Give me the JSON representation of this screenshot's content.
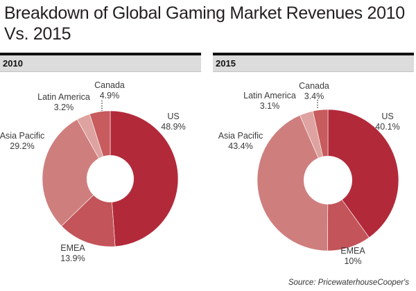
{
  "title": "Breakdown of Global Gaming Market Revenues 2010 Vs. 2015",
  "source": "Source: PricewaterhouseCooper's",
  "colors": {
    "US": "#b22a3a",
    "EMEA": "#c3545a",
    "Asia Pacific": "#cf7e7e",
    "Latin America": "#dea3a0",
    "Canada": "#c75b5d"
  },
  "chart_data": [
    {
      "type": "pie",
      "title": "2010",
      "donut": true,
      "categories": [
        "US",
        "EMEA",
        "Asia Pacific",
        "Latin America",
        "Canada"
      ],
      "values": [
        48.9,
        13.9,
        29.2,
        3.2,
        4.9
      ],
      "value_labels": [
        "48.9%",
        "13.9%",
        "29.2%",
        "3.2%",
        "4.9%"
      ]
    },
    {
      "type": "pie",
      "title": "2015",
      "donut": true,
      "categories": [
        "US",
        "EMEA",
        "Asia Pacific",
        "Latin America",
        "Canada"
      ],
      "values": [
        40.1,
        10,
        43.4,
        3.1,
        3.4
      ],
      "value_labels": [
        "40.1%",
        "10%",
        "43.4%",
        "3.1%",
        "3.4%"
      ]
    }
  ]
}
